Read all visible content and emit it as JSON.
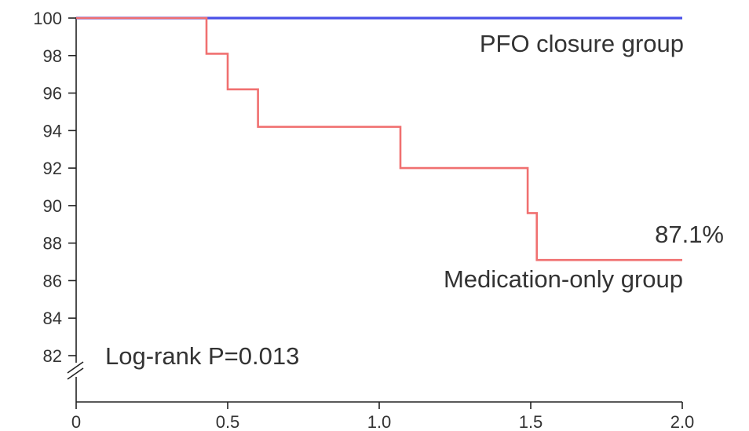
{
  "chart_data": {
    "type": "line",
    "title": "",
    "xlabel": "",
    "ylabel": "",
    "xlim": [
      0,
      2.0
    ],
    "ylim": [
      82,
      100
    ],
    "x_axis_break": false,
    "y_axis_break": true,
    "grid": false,
    "xticks": [
      0,
      0.5,
      1.0,
      1.5,
      2.0
    ],
    "xtick_labels": [
      "0",
      "0.5",
      "1.0",
      "1.5",
      "2.0"
    ],
    "yticks": [
      82,
      84,
      86,
      88,
      90,
      92,
      94,
      96,
      98,
      100
    ],
    "ytick_labels": [
      "82",
      "84",
      "86",
      "88",
      "90",
      "92",
      "94",
      "96",
      "98",
      "100"
    ],
    "series": [
      {
        "name": "PFO closure group",
        "color": "#4a50e8",
        "step": true,
        "points": [
          [
            0,
            100
          ],
          [
            2.0,
            100
          ]
        ]
      },
      {
        "name": "Medication-only group",
        "color": "#f07070",
        "step": true,
        "points": [
          [
            0,
            100
          ],
          [
            0.43,
            100
          ],
          [
            0.43,
            98.1
          ],
          [
            0.5,
            98.1
          ],
          [
            0.5,
            96.2
          ],
          [
            0.6,
            96.2
          ],
          [
            0.6,
            94.2
          ],
          [
            1.07,
            94.2
          ],
          [
            1.07,
            92.0
          ],
          [
            1.49,
            92.0
          ],
          [
            1.49,
            89.6
          ],
          [
            1.52,
            89.6
          ],
          [
            1.52,
            87.1
          ],
          [
            2.0,
            87.1
          ]
        ]
      }
    ],
    "annotations": {
      "pfo_label": "PFO closure group",
      "medication_label": "Medication-only group",
      "final_value": "87.1%",
      "logrank": "Log-rank P=0.013"
    }
  }
}
